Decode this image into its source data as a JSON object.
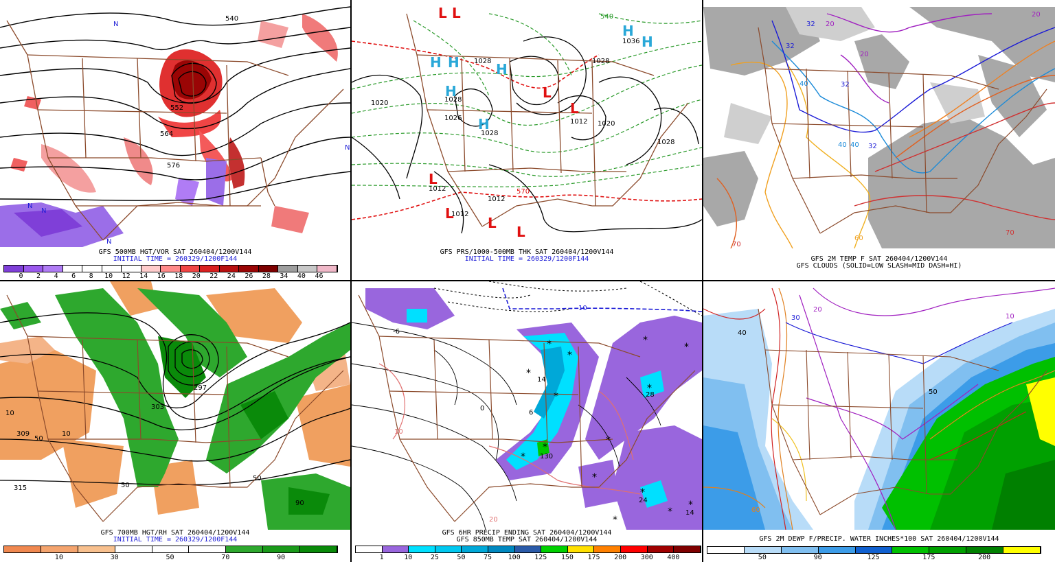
{
  "panels": [
    {
      "caption": "GFS 500MB HGT/VOR SAT 260404/1200V144",
      "caption2": "INITIAL TIME = 260329/1200F144",
      "scale_ticks": [
        "0",
        "2",
        "4",
        "6",
        "8",
        "10",
        "12",
        "14",
        "16",
        "18",
        "20",
        "22",
        "24",
        "26",
        "28",
        "34",
        "40",
        "46"
      ],
      "scale_colors": [
        "#7f3fd8",
        "#9b59ee",
        "#b07cf5",
        "#ffffff",
        "#ffffff",
        "#ffffff",
        "#ffffff",
        "#ffcccc",
        "#ff8a8a",
        "#f04545",
        "#d92020",
        "#b81010",
        "#9a0505",
        "#7d0000",
        "#9e9e9e",
        "#c8c8c8",
        "#f0b8c8"
      ],
      "contour_labels": [
        "540",
        "552",
        "564",
        "576",
        "N",
        "N",
        "N",
        "N",
        "N"
      ]
    },
    {
      "caption": "GFS PRS/1000-500MB THK SAT 260404/1200V144",
      "caption2": "INITIAL TIME = 260329/1200F144",
      "labels_text": [
        "1020",
        "1028",
        "1028",
        "1026",
        "1028",
        "1020",
        "1012",
        "1012",
        "1012",
        "1012",
        "1028",
        "1028",
        "540",
        "570",
        "1036"
      ],
      "highs": [
        "H",
        "H",
        "H",
        "H",
        "H",
        "H",
        "H"
      ],
      "lows": [
        "L",
        "L",
        "L",
        "L",
        "L",
        "L",
        "L",
        "L"
      ]
    },
    {
      "caption": "GFS 2M TEMP F SAT 260404/1200V144",
      "caption2": "GFS CLOUDS (SOLID=LOW SLASH=MID DASH=HI)",
      "contour_labels": [
        "32",
        "32",
        "40",
        "40",
        "32",
        "20",
        "20",
        "20",
        "70",
        "70",
        "60",
        "40",
        "32"
      ]
    },
    {
      "caption": "GFS 700MB HGT/RH SAT 260404/1200V144",
      "caption2": "INITIAL TIME = 260329/1200F144",
      "scale_ticks": [
        "10",
        "30",
        "50",
        "70",
        "90"
      ],
      "scale_colors": [
        "#f08850",
        "#f4a46e",
        "#f8c08e",
        "#ffffff",
        "#ffffff",
        "#ffffff",
        "#2ea82e",
        "#1a9a1a",
        "#0a8a0a"
      ],
      "contour_labels": [
        "309",
        "303",
        "297",
        "315",
        "50",
        "50",
        "50",
        "90",
        "10",
        "10"
      ]
    },
    {
      "caption": "GFS 6HR PRECIP ENDING SAT 260404/1200V144",
      "caption2": "GFS 850MB TEMP SAT 260404/1200V144",
      "scale_ticks": [
        "1",
        "10",
        "25",
        "50",
        "75",
        "100",
        "125",
        "150",
        "175",
        "200",
        "300",
        "400"
      ],
      "scale_colors": [
        "#ffffff",
        "#9966dd",
        "#00e0ff",
        "#00c8f0",
        "#00a8d8",
        "#0088c0",
        "#2a5aa8",
        "#00d000",
        "#ffe000",
        "#ff8000",
        "#ff0000",
        "#a00000",
        "#7f0000"
      ],
      "contour_labels": [
        "10",
        "-6",
        "0",
        "14",
        "6",
        "10",
        "20",
        "24",
        "14",
        "28",
        "130"
      ]
    },
    {
      "caption": "GFS 2M DEWP F/PRECIP. WATER INCHES*100 SAT 260404/1200V144",
      "scale_ticks": [
        "50",
        "90",
        "125",
        "175",
        "200"
      ],
      "scale_colors": [
        "#ffffff",
        "#b8dcf8",
        "#80bff0",
        "#3c9ce8",
        "#1060d0",
        "#00c000",
        "#00a000",
        "#008000",
        "#ffff00"
      ],
      "contour_labels": [
        "40",
        "30",
        "20",
        "10",
        "50",
        "60"
      ]
    }
  ]
}
